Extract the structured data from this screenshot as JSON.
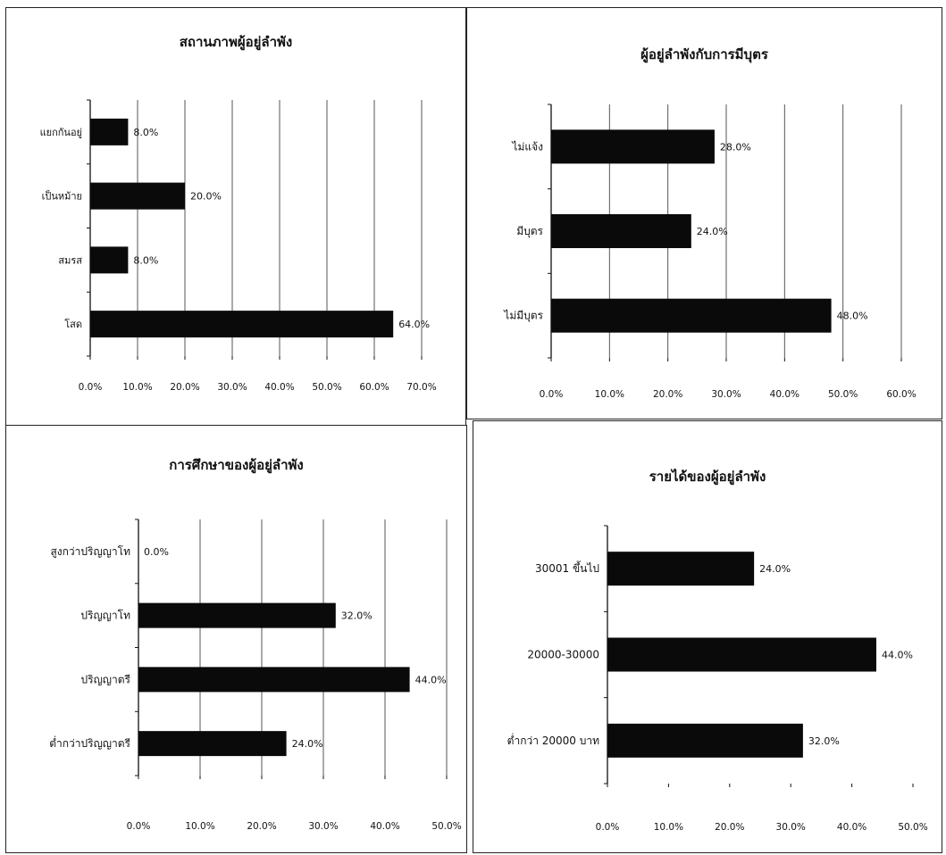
{
  "chart_data": [
    {
      "type": "bar",
      "orientation": "horizontal",
      "title": "สถานภาพผู้อยู่ลำพัง",
      "categories": [
        "แยกกันอยู่",
        "เป็นหม้าย",
        "สมรส",
        "โสด"
      ],
      "values": [
        8.0,
        20.0,
        8.0,
        64.0
      ],
      "value_labels": [
        "8.0%",
        "20.0%",
        "8.0%",
        "64.0%"
      ],
      "xlim": [
        0,
        70
      ],
      "xticks": [
        "0.0%",
        "10.0%",
        "20.0%",
        "30.0%",
        "40.0%",
        "50.0%",
        "60.0%",
        "70.0%"
      ],
      "grid": true,
      "bar_color": "#0a0a0a"
    },
    {
      "type": "bar",
      "orientation": "horizontal",
      "title": "ผู้อยู่ลำพังกับการมีบุตร",
      "categories": [
        "ไม่แจ้ง",
        "มีบุตร",
        "ไม่มีบุตร"
      ],
      "values": [
        28.0,
        24.0,
        48.0
      ],
      "value_labels": [
        "28.0%",
        "24.0%",
        "48.0%"
      ],
      "xlim": [
        0,
        60
      ],
      "xticks": [
        "0.0%",
        "10.0%",
        "20.0%",
        "30.0%",
        "40.0%",
        "50.0%",
        "60.0%"
      ],
      "grid": true,
      "bar_color": "#0a0a0a"
    },
    {
      "type": "bar",
      "orientation": "horizontal",
      "title": "การศึกษาของผู้อยู่ลำพัง",
      "categories": [
        "สูงกว่าปริญญาโท",
        "ปริญญาโท",
        "ปริญญาตรี",
        "ต่ำกว่าปริญญาตรี"
      ],
      "values": [
        0.0,
        32.0,
        44.0,
        24.0
      ],
      "value_labels": [
        "0.0%",
        "32.0%",
        "44.0%",
        "24.0%"
      ],
      "xlim": [
        0,
        50
      ],
      "xticks": [
        "0.0%",
        "10.0%",
        "20.0%",
        "30.0%",
        "40.0%",
        "50.0%"
      ],
      "grid": true,
      "bar_color": "#0a0a0a"
    },
    {
      "type": "bar",
      "orientation": "horizontal",
      "title": "รายได้ของผู้อยู่ลำพัง",
      "categories": [
        "30001 ขึ้นไป",
        "20000-30000",
        "ต่ำกว่า 20000 บาท"
      ],
      "values": [
        24.0,
        44.0,
        32.0
      ],
      "value_labels": [
        "24.0%",
        "44.0%",
        "32.0%"
      ],
      "xlim": [
        0,
        50
      ],
      "xticks": [
        "0.0%",
        "10.0%",
        "20.0%",
        "30.0%",
        "40.0%",
        "50.0%"
      ],
      "grid": false,
      "bar_color": "#0a0a0a"
    }
  ]
}
